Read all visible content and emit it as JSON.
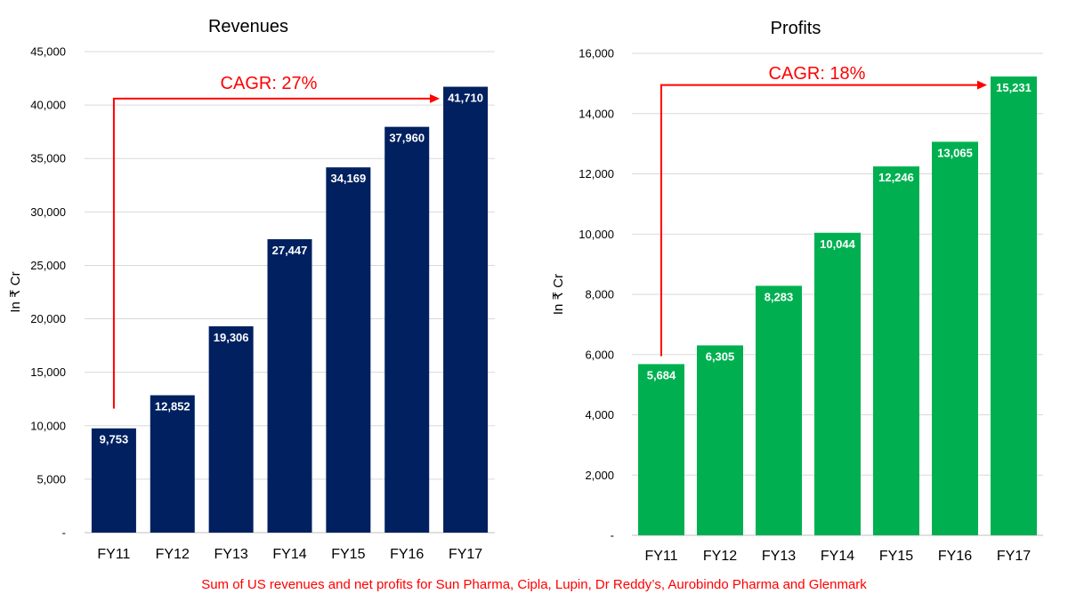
{
  "chart_data": [
    {
      "type": "bar",
      "title": "Revenues",
      "ylabel": "In ₹ Cr",
      "xlabel": "",
      "categories": [
        "FY11",
        "FY12",
        "FY13",
        "FY14",
        "FY15",
        "FY16",
        "FY17"
      ],
      "values": [
        9753,
        12852,
        19306,
        27447,
        34169,
        37960,
        41710
      ],
      "value_labels": [
        "9,753",
        "12,852",
        "19,306",
        "27,447",
        "34,169",
        "37,960",
        "41,710"
      ],
      "ylim": [
        0,
        45000
      ],
      "yticks": [
        0,
        5000,
        10000,
        15000,
        20000,
        25000,
        30000,
        35000,
        40000,
        45000
      ],
      "ytick_labels": [
        "-",
        "5,000",
        "10,000",
        "15,000",
        "20,000",
        "25,000",
        "30,000",
        "35,000",
        "40,000",
        "45,000"
      ],
      "bar_color": "#002060",
      "grid": "horizontal",
      "annotation": {
        "text": "CAGR: 27%",
        "color": "#ff0000",
        "from_category": "FY11",
        "to_category": "FY17",
        "arrow_y": 40600,
        "start_y": 11600
      }
    },
    {
      "type": "bar",
      "title": "Profits",
      "ylabel": "In ₹ Cr",
      "xlabel": "",
      "categories": [
        "FY11",
        "FY12",
        "FY13",
        "FY14",
        "FY15",
        "FY16",
        "FY17"
      ],
      "values": [
        5684,
        6305,
        8283,
        10044,
        12246,
        13065,
        15231
      ],
      "value_labels": [
        "5,684",
        "6,305",
        "8,283",
        "10,044",
        "12,246",
        "13,065",
        "15,231"
      ],
      "ylim": [
        0,
        16000
      ],
      "yticks": [
        0,
        2000,
        4000,
        6000,
        8000,
        10000,
        12000,
        14000,
        16000
      ],
      "ytick_labels": [
        "-",
        "2,000",
        "4,000",
        "6,000",
        "8,000",
        "10,000",
        "12,000",
        "14,000",
        "16,000"
      ],
      "bar_color": "#00b050",
      "grid": "horizontal",
      "annotation": {
        "text": "CAGR: 18%",
        "color": "#ff0000",
        "from_category": "FY11",
        "to_category": "FY17",
        "arrow_y": 14950,
        "start_y": 5950
      }
    }
  ],
  "footnote": "Sum of US revenues and net profits for Sun Pharma, Cipla, Lupin, Dr Reddy’s, Aurobindo Pharma and Glenmark"
}
